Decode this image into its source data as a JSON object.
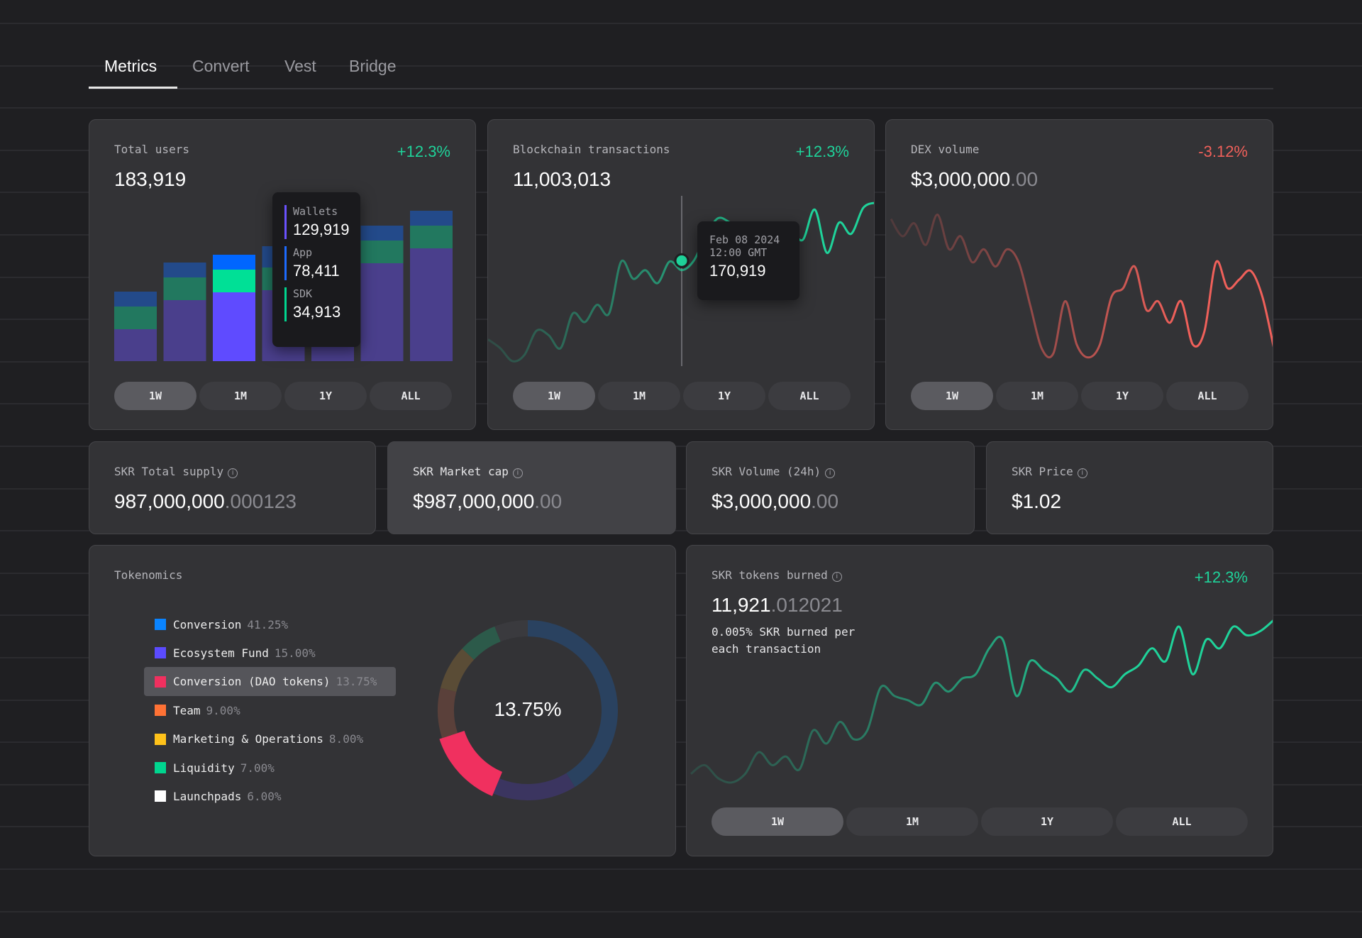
{
  "tabs": [
    {
      "label": "Metrics",
      "active": true
    },
    {
      "label": "Convert"
    },
    {
      "label": "Vest"
    },
    {
      "label": "Bridge"
    }
  ],
  "ranges": [
    "1W",
    "1M",
    "1Y",
    "ALL"
  ],
  "colors": {
    "up": "#1fd39a",
    "down": "#f0605a",
    "wallets": "#5b4bff",
    "app": "#1d6bff",
    "sdk": "#00d68f"
  },
  "total_users": {
    "title": "Total users",
    "value": "183,919",
    "delta": "+12.3%",
    "selected_range": "1W",
    "tooltip": [
      {
        "label": "Wallets",
        "value": "129,919",
        "color": "#6a52ff"
      },
      {
        "label": "App",
        "value": "78,411",
        "color": "#1d6bff"
      },
      {
        "label": "SDK",
        "value": "34,913",
        "color": "#00d68f"
      }
    ]
  },
  "blockchain_tx": {
    "title": "Blockchain transactions",
    "value": "11,003,013",
    "delta": "+12.3%",
    "selected_range": "1W",
    "tooltip": {
      "date": "Feb 08 2024",
      "time": "12:00 GMT",
      "value": "170,919"
    }
  },
  "dex_volume": {
    "title": "DEX volume",
    "value_main": "$3,000,000",
    "value_dec": ".00",
    "delta": "-3.12%",
    "selected_range": "1W"
  },
  "stats": [
    {
      "title": "SKR Total supply",
      "main": "987,000,000",
      "dec": ".000123"
    },
    {
      "title": "SKR Market cap",
      "main": "$987,000,000",
      "dec": ".00",
      "highlighted": true
    },
    {
      "title": "SKR Volume (24h)",
      "main": "$3,000,000",
      "dec": ".00"
    },
    {
      "title": "SKR Price",
      "main": "$1.02",
      "dec": ""
    }
  ],
  "tokenomics": {
    "title": "Tokenomics",
    "center_label": "13.75%",
    "highlighted": "Conversion (DAO tokens)"
  },
  "burned": {
    "title": "SKR tokens burned",
    "main": "11,921",
    "dec": ".012021",
    "delta": "+12.3%",
    "desc": "0.005% SKR burned per each transaction",
    "selected_range": "1W"
  },
  "chart_data": [
    {
      "type": "bar",
      "stacked": true,
      "series": [
        {
          "name": "Wallets",
          "color": "#4a3f8c",
          "highlight": "#5f4bff",
          "values": [
            45,
            86,
            97,
            100,
            122,
            138,
            159
          ]
        },
        {
          "name": "SDK",
          "color": "#22785f",
          "highlight": "#00e096",
          "values": [
            32,
            32,
            32,
            32,
            32,
            32,
            32
          ]
        },
        {
          "name": "App",
          "color": "#234a8a",
          "highlight": "#0066ff",
          "values": [
            21,
            21,
            21,
            30,
            21,
            21,
            21
          ]
        }
      ],
      "highlighted_index": 2
    },
    {
      "type": "line",
      "color": "#1fd39a",
      "values": [
        30,
        20,
        5,
        12,
        40,
        35,
        20,
        60,
        50,
        70,
        60,
        120,
        100,
        110,
        95,
        120,
        110,
        121,
        150,
        170,
        165,
        158,
        152,
        158,
        160,
        158,
        145,
        180,
        130,
        165,
        152,
        182,
        188
      ],
      "marker_index": 17
    },
    {
      "type": "line",
      "color": "#f0605a",
      "values": [
        170,
        150,
        165,
        140,
        175,
        135,
        150,
        120,
        135,
        115,
        135,
        120,
        70,
        20,
        15,
        75,
        25,
        10,
        25,
        80,
        90,
        115,
        65,
        75,
        50,
        75,
        25,
        40,
        120,
        90,
        100,
        110,
        80,
        20
      ]
    },
    {
      "type": "pie",
      "donut": true,
      "labels": [
        "Conversion",
        "Ecosystem Fund",
        "Conversion (DAO tokens)",
        "Team",
        "Marketing & Operations",
        "Liquidity",
        "Launchpads"
      ],
      "values": [
        41.25,
        15.0,
        13.75,
        9.0,
        8.0,
        7.0,
        6.0
      ],
      "value_labels": [
        "41.25%",
        "15.00%",
        "13.75%",
        "9.00%",
        "8.00%",
        "7.00%",
        "6.00%"
      ],
      "colors": [
        "#0a84ff",
        "#5b4bff",
        "#f0305f",
        "#ff7235",
        "#ffc21a",
        "#00d68f",
        "#ffffff"
      ],
      "dim_colors": [
        "#2a4260",
        "#3b3560",
        "#f0305f",
        "#5a403a",
        "#5a4c36",
        "#2c5a4a",
        "#3a3a3e"
      ]
    },
    {
      "type": "line",
      "color": "#1fd39a",
      "values": [
        20,
        30,
        15,
        10,
        20,
        45,
        30,
        40,
        25,
        70,
        55,
        80,
        60,
        70,
        120,
        110,
        105,
        100,
        125,
        115,
        130,
        135,
        165,
        175,
        110,
        150,
        140,
        130,
        115,
        140,
        130,
        120,
        135,
        145,
        165,
        150,
        190,
        135,
        175,
        165,
        190,
        180,
        185,
        198
      ]
    }
  ]
}
